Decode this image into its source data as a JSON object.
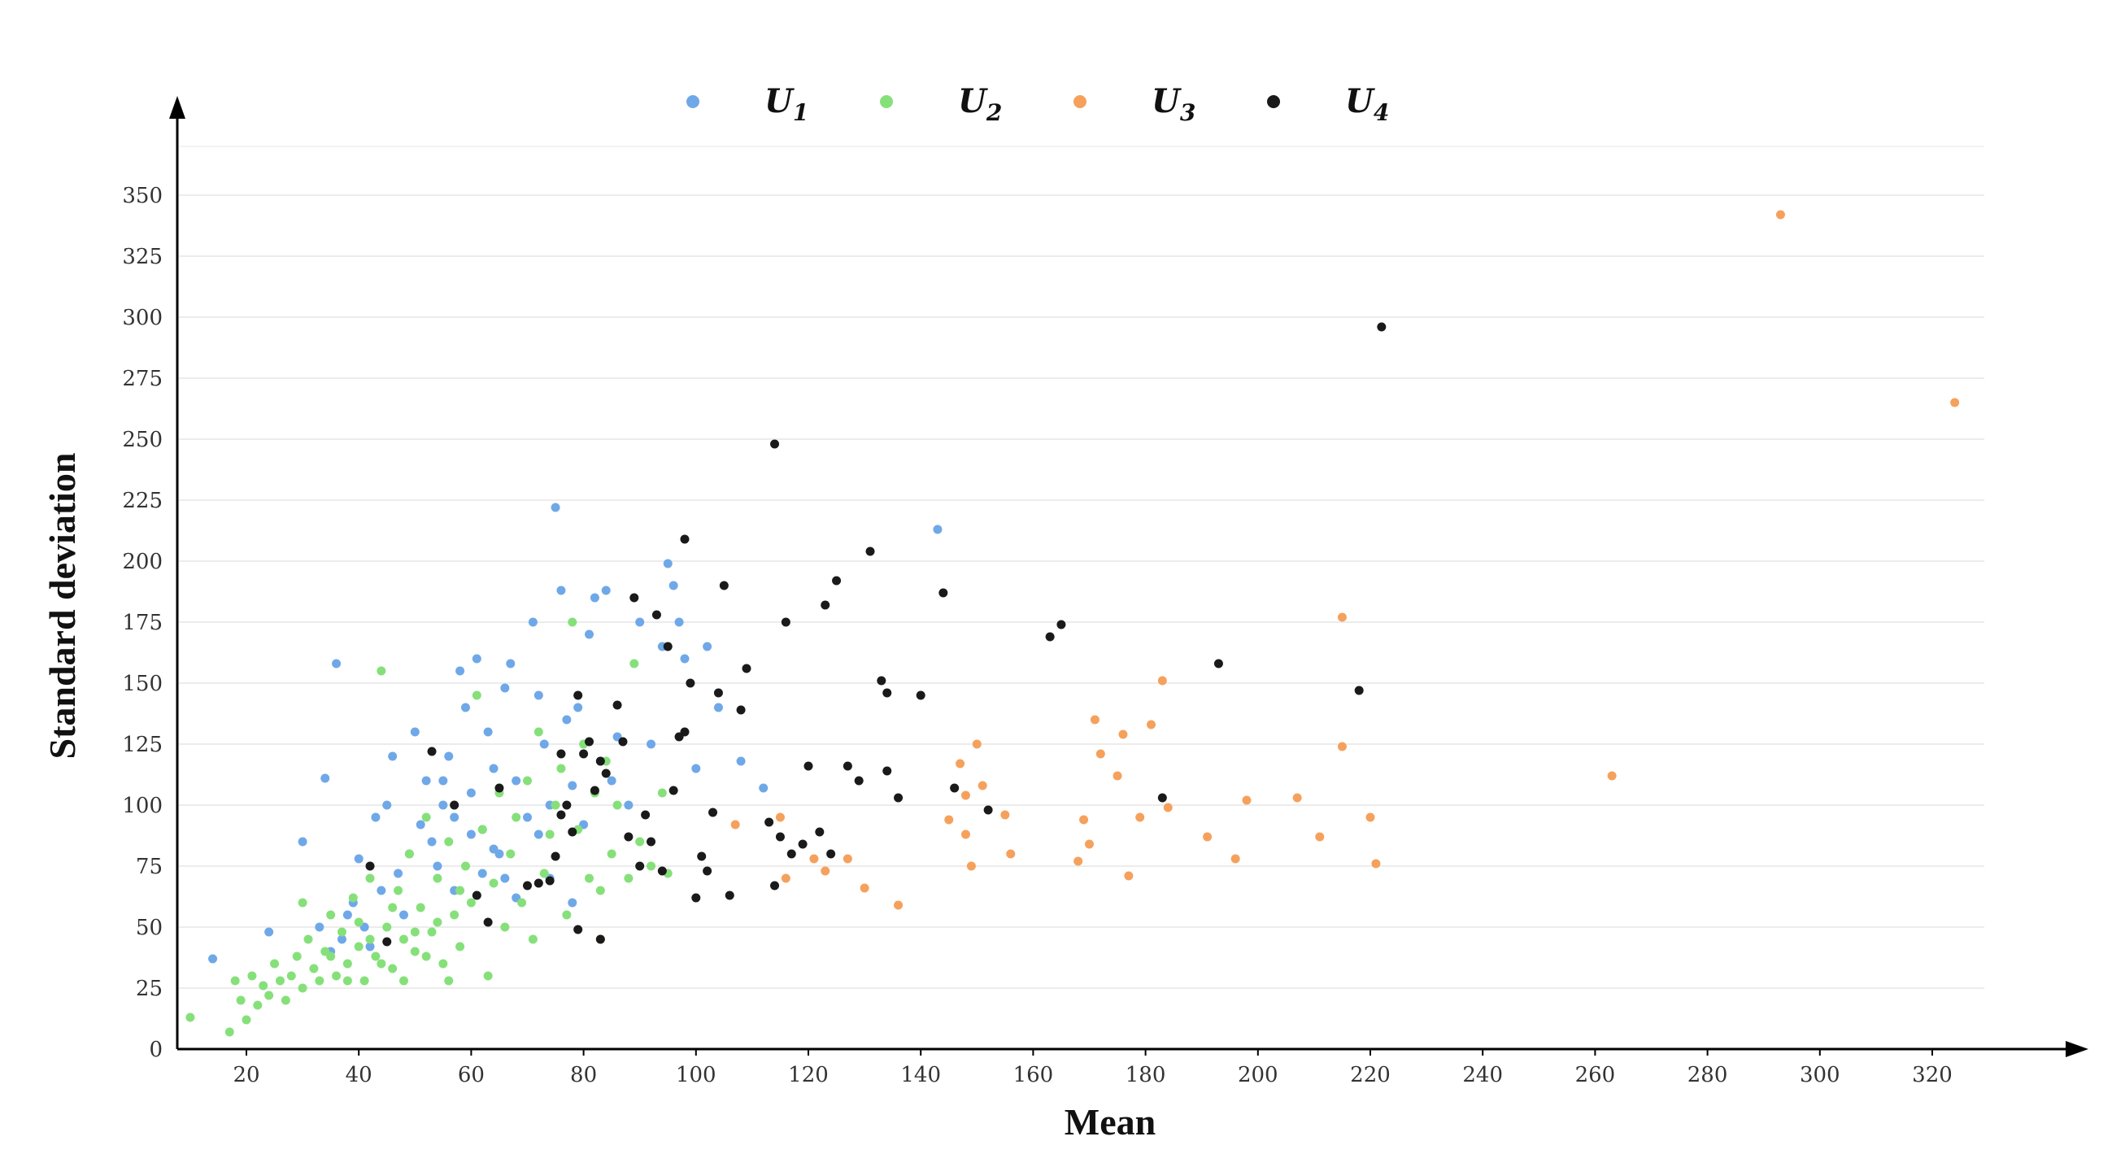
{
  "chart_data": {
    "type": "scatter",
    "title": "",
    "xlabel": "Mean",
    "ylabel": "Standard deviation",
    "xlim": [
      10,
      330
    ],
    "ylim": [
      0,
      370
    ],
    "x_ticks": [
      20,
      40,
      60,
      80,
      100,
      120,
      140,
      160,
      180,
      200,
      220,
      240,
      260,
      280,
      300,
      320
    ],
    "y_ticks": [
      0,
      25,
      50,
      75,
      100,
      125,
      150,
      175,
      200,
      225,
      250,
      275,
      300,
      325,
      350
    ],
    "grid": "horizontal",
    "legend_position": "top-center",
    "series": [
      {
        "name": "U1",
        "symbol": "U",
        "subscript": "1",
        "color": "#6fa8e8",
        "points": [
          [
            14,
            37
          ],
          [
            24,
            48
          ],
          [
            30,
            85
          ],
          [
            34,
            111
          ],
          [
            36,
            158
          ],
          [
            33,
            50
          ],
          [
            35,
            40
          ],
          [
            37,
            45
          ],
          [
            38,
            55
          ],
          [
            39,
            60
          ],
          [
            40,
            78
          ],
          [
            41,
            50
          ],
          [
            42,
            42
          ],
          [
            43,
            95
          ],
          [
            44,
            65
          ],
          [
            45,
            100
          ],
          [
            46,
            120
          ],
          [
            47,
            72
          ],
          [
            48,
            55
          ],
          [
            49,
            80
          ],
          [
            50,
            130
          ],
          [
            51,
            92
          ],
          [
            52,
            110
          ],
          [
            53,
            85
          ],
          [
            54,
            75
          ],
          [
            55,
            100
          ],
          [
            56,
            120
          ],
          [
            57,
            65
          ],
          [
            58,
            155
          ],
          [
            59,
            140
          ],
          [
            60,
            105
          ],
          [
            61,
            160
          ],
          [
            62,
            90
          ],
          [
            63,
            130
          ],
          [
            64,
            115
          ],
          [
            65,
            80
          ],
          [
            66,
            148
          ],
          [
            67,
            158
          ],
          [
            68,
            110
          ],
          [
            70,
            95
          ],
          [
            71,
            175
          ],
          [
            72,
            145
          ],
          [
            73,
            125
          ],
          [
            74,
            100
          ],
          [
            75,
            222
          ],
          [
            76,
            188
          ],
          [
            77,
            135
          ],
          [
            78,
            108
          ],
          [
            79,
            140
          ],
          [
            80,
            92
          ],
          [
            81,
            170
          ],
          [
            82,
            185
          ],
          [
            83,
            118
          ],
          [
            84,
            188
          ],
          [
            85,
            110
          ],
          [
            86,
            128
          ],
          [
            88,
            100
          ],
          [
            90,
            175
          ],
          [
            92,
            125
          ],
          [
            94,
            165
          ],
          [
            95,
            199
          ],
          [
            96,
            190
          ],
          [
            97,
            175
          ],
          [
            98,
            160
          ],
          [
            100,
            115
          ],
          [
            102,
            165
          ],
          [
            104,
            140
          ],
          [
            108,
            118
          ],
          [
            112,
            107
          ],
          [
            143,
            213
          ],
          [
            55,
            110
          ],
          [
            57,
            95
          ],
          [
            60,
            88
          ],
          [
            62,
            72
          ],
          [
            64,
            82
          ],
          [
            66,
            70
          ],
          [
            68,
            62
          ],
          [
            72,
            88
          ],
          [
            74,
            70
          ],
          [
            78,
            60
          ]
        ]
      },
      {
        "name": "U2",
        "symbol": "U",
        "subscript": "2",
        "color": "#86e07a",
        "points": [
          [
            10,
            13
          ],
          [
            17,
            7
          ],
          [
            18,
            28
          ],
          [
            19,
            20
          ],
          [
            20,
            12
          ],
          [
            21,
            30
          ],
          [
            22,
            18
          ],
          [
            23,
            26
          ],
          [
            24,
            22
          ],
          [
            25,
            35
          ],
          [
            26,
            28
          ],
          [
            27,
            20
          ],
          [
            28,
            30
          ],
          [
            29,
            38
          ],
          [
            30,
            25
          ],
          [
            31,
            45
          ],
          [
            32,
            33
          ],
          [
            33,
            28
          ],
          [
            34,
            40
          ],
          [
            35,
            55
          ],
          [
            36,
            30
          ],
          [
            37,
            48
          ],
          [
            38,
            35
          ],
          [
            39,
            62
          ],
          [
            40,
            42
          ],
          [
            41,
            28
          ],
          [
            42,
            70
          ],
          [
            43,
            38
          ],
          [
            44,
            155
          ],
          [
            45,
            50
          ],
          [
            46,
            33
          ],
          [
            47,
            65
          ],
          [
            48,
            45
          ],
          [
            49,
            80
          ],
          [
            50,
            40
          ],
          [
            51,
            58
          ],
          [
            52,
            95
          ],
          [
            53,
            48
          ],
          [
            54,
            70
          ],
          [
            55,
            35
          ],
          [
            56,
            85
          ],
          [
            57,
            55
          ],
          [
            58,
            42
          ],
          [
            59,
            75
          ],
          [
            60,
            60
          ],
          [
            61,
            145
          ],
          [
            62,
            90
          ],
          [
            63,
            30
          ],
          [
            64,
            68
          ],
          [
            65,
            105
          ],
          [
            66,
            50
          ],
          [
            67,
            80
          ],
          [
            68,
            95
          ],
          [
            69,
            60
          ],
          [
            70,
            110
          ],
          [
            71,
            45
          ],
          [
            72,
            130
          ],
          [
            73,
            72
          ],
          [
            74,
            88
          ],
          [
            75,
            100
          ],
          [
            76,
            115
          ],
          [
            77,
            55
          ],
          [
            78,
            175
          ],
          [
            79,
            90
          ],
          [
            80,
            125
          ],
          [
            81,
            70
          ],
          [
            82,
            105
          ],
          [
            83,
            65
          ],
          [
            84,
            118
          ],
          [
            85,
            80
          ],
          [
            86,
            100
          ],
          [
            88,
            70
          ],
          [
            89,
            158
          ],
          [
            90,
            85
          ],
          [
            92,
            75
          ],
          [
            94,
            105
          ],
          [
            95,
            72
          ],
          [
            30,
            60
          ],
          [
            35,
            38
          ],
          [
            38,
            28
          ],
          [
            40,
            52
          ],
          [
            42,
            45
          ],
          [
            44,
            35
          ],
          [
            46,
            58
          ],
          [
            48,
            28
          ],
          [
            50,
            48
          ],
          [
            52,
            38
          ],
          [
            54,
            52
          ],
          [
            56,
            28
          ],
          [
            58,
            65
          ]
        ]
      },
      {
        "name": "U3",
        "symbol": "U",
        "subscript": "3",
        "color": "#f5a15c",
        "points": [
          [
            83,
            45
          ],
          [
            107,
            92
          ],
          [
            115,
            95
          ],
          [
            116,
            70
          ],
          [
            121,
            78
          ],
          [
            123,
            73
          ],
          [
            127,
            78
          ],
          [
            130,
            66
          ],
          [
            136,
            59
          ],
          [
            145,
            94
          ],
          [
            147,
            117
          ],
          [
            148,
            88
          ],
          [
            148,
            104
          ],
          [
            149,
            75
          ],
          [
            150,
            125
          ],
          [
            151,
            108
          ],
          [
            155,
            96
          ],
          [
            156,
            80
          ],
          [
            168,
            77
          ],
          [
            169,
            94
          ],
          [
            170,
            84
          ],
          [
            171,
            135
          ],
          [
            172,
            121
          ],
          [
            175,
            112
          ],
          [
            176,
            129
          ],
          [
            177,
            71
          ],
          [
            179,
            95
          ],
          [
            181,
            133
          ],
          [
            183,
            151
          ],
          [
            184,
            99
          ],
          [
            191,
            87
          ],
          [
            196,
            78
          ],
          [
            198,
            102
          ],
          [
            207,
            103
          ],
          [
            211,
            87
          ],
          [
            215,
            177
          ],
          [
            215,
            124
          ],
          [
            220,
            95
          ],
          [
            221,
            76
          ],
          [
            263,
            112
          ],
          [
            293,
            342
          ],
          [
            324,
            265
          ]
        ]
      },
      {
        "name": "U4",
        "symbol": "U",
        "subscript": "4",
        "color": "#1a1a1a",
        "points": [
          [
            42,
            75
          ],
          [
            45,
            44
          ],
          [
            53,
            122
          ],
          [
            57,
            100
          ],
          [
            61,
            63
          ],
          [
            63,
            52
          ],
          [
            65,
            107
          ],
          [
            70,
            67
          ],
          [
            72,
            68
          ],
          [
            74,
            69
          ],
          [
            75,
            79
          ],
          [
            76,
            121
          ],
          [
            76,
            96
          ],
          [
            77,
            100
          ],
          [
            78,
            89
          ],
          [
            79,
            145
          ],
          [
            79,
            49
          ],
          [
            80,
            121
          ],
          [
            81,
            126
          ],
          [
            82,
            106
          ],
          [
            83,
            118
          ],
          [
            83,
            45
          ],
          [
            84,
            113
          ],
          [
            86,
            141
          ],
          [
            87,
            126
          ],
          [
            88,
            87
          ],
          [
            89,
            185
          ],
          [
            90,
            75
          ],
          [
            91,
            96
          ],
          [
            92,
            85
          ],
          [
            93,
            178
          ],
          [
            94,
            73
          ],
          [
            95,
            165
          ],
          [
            96,
            106
          ],
          [
            97,
            128
          ],
          [
            98,
            209
          ],
          [
            98,
            130
          ],
          [
            99,
            150
          ],
          [
            100,
            62
          ],
          [
            101,
            79
          ],
          [
            102,
            73
          ],
          [
            103,
            97
          ],
          [
            104,
            146
          ],
          [
            105,
            190
          ],
          [
            106,
            63
          ],
          [
            108,
            139
          ],
          [
            109,
            156
          ],
          [
            113,
            93
          ],
          [
            114,
            248
          ],
          [
            114,
            67
          ],
          [
            115,
            87
          ],
          [
            116,
            175
          ],
          [
            117,
            80
          ],
          [
            119,
            84
          ],
          [
            120,
            116
          ],
          [
            122,
            89
          ],
          [
            123,
            182
          ],
          [
            124,
            80
          ],
          [
            125,
            192
          ],
          [
            127,
            116
          ],
          [
            129,
            110
          ],
          [
            131,
            204
          ],
          [
            133,
            151
          ],
          [
            134,
            146
          ],
          [
            134,
            114
          ],
          [
            136,
            103
          ],
          [
            140,
            145
          ],
          [
            144,
            187
          ],
          [
            146,
            107
          ],
          [
            152,
            98
          ],
          [
            163,
            169
          ],
          [
            165,
            174
          ],
          [
            183,
            103
          ],
          [
            193,
            158
          ],
          [
            218,
            147
          ],
          [
            222,
            296
          ]
        ]
      }
    ]
  }
}
